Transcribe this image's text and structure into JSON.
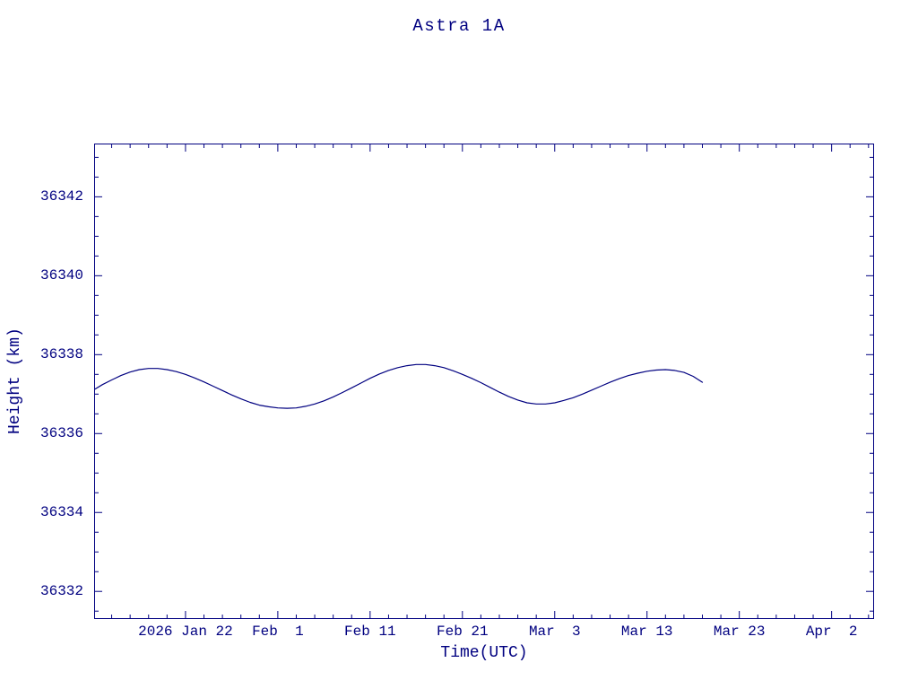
{
  "page": {
    "background_color": "#ffffff",
    "accent_color": "#000080"
  },
  "chart_data": {
    "type": "line",
    "title": "Astra 1A",
    "xlabel": "Time(UTC)",
    "ylabel": "Height (km)",
    "line_color": "#000080",
    "grid": false,
    "legend": "none",
    "x_unit": "day of year 2026 (Jan 1 = 1)",
    "xlim_day_of_year": [
      12.1,
      96.6
    ],
    "ylim": [
      36331.3,
      36343.35
    ],
    "x_ticks": [
      {
        "label": "2026 Jan 22",
        "day": 22
      },
      {
        "label": "Feb  1",
        "day": 32
      },
      {
        "label": "Feb 11",
        "day": 42
      },
      {
        "label": "Feb 21",
        "day": 52
      },
      {
        "label": "Mar  3",
        "day": 62
      },
      {
        "label": "Mar 13",
        "day": 72
      },
      {
        "label": "Mar 23",
        "day": 82
      },
      {
        "label": "Apr  2",
        "day": 92
      }
    ],
    "x_minor_tick_step_days": 2,
    "y_ticks": [
      36332,
      36334,
      36336,
      36338,
      36340,
      36342
    ],
    "y_minor_tick_step": 0.5,
    "series": [
      {
        "name": "Astra 1A height",
        "x_day_of_year": [
          12,
          13,
          14,
          15,
          16,
          17,
          18,
          19,
          20,
          21,
          22,
          23,
          24,
          25,
          26,
          27,
          28,
          29,
          30,
          31,
          32,
          33,
          34,
          35,
          36,
          37,
          38,
          39,
          40,
          41,
          42,
          43,
          44,
          45,
          46,
          47,
          48,
          49,
          50,
          51,
          52,
          53,
          54,
          55,
          56,
          57,
          58,
          59,
          60,
          61,
          62,
          63,
          64,
          65,
          66,
          67,
          68,
          69,
          70,
          71,
          72,
          73,
          74,
          75,
          76,
          77,
          78
        ],
        "y_km": [
          36337.1,
          36337.24,
          36337.36,
          36337.47,
          36337.56,
          36337.62,
          36337.65,
          36337.65,
          36337.62,
          36337.57,
          36337.5,
          36337.41,
          36337.31,
          36337.2,
          36337.09,
          36336.98,
          36336.88,
          36336.79,
          36336.72,
          36336.68,
          36336.65,
          36336.64,
          36336.65,
          36336.69,
          36336.75,
          36336.83,
          36336.93,
          36337.04,
          36337.16,
          36337.28,
          36337.4,
          36337.51,
          36337.6,
          36337.67,
          36337.72,
          36337.75,
          36337.75,
          36337.72,
          36337.67,
          36337.59,
          36337.5,
          36337.4,
          36337.29,
          36337.17,
          36337.05,
          36336.94,
          36336.85,
          36336.78,
          36336.75,
          36336.75,
          36336.78,
          36336.84,
          36336.91,
          36337.0,
          36337.1,
          36337.2,
          36337.3,
          36337.39,
          36337.47,
          36337.53,
          36337.58,
          36337.61,
          36337.62,
          36337.6,
          36337.55,
          36337.45,
          36337.3
        ]
      }
    ]
  }
}
